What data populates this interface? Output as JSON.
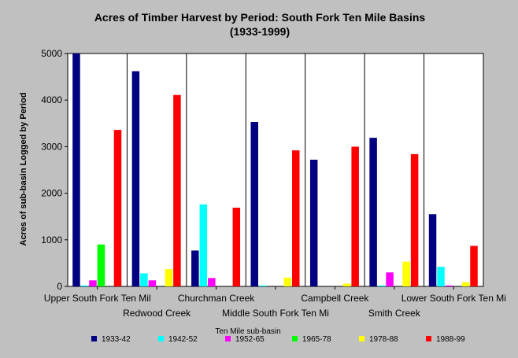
{
  "chart_data": {
    "type": "bar",
    "title": "Acres of Timber Harvest by Period: South Fork Ten Mile Basins",
    "subtitle": "(1933-1999)",
    "xlabel": "Ten Mile sub-basin",
    "ylabel": "Acres of sub-basin Logged by Period",
    "ylim": [
      0,
      5000
    ],
    "yticks": [
      0,
      1000,
      2000,
      3000,
      4000,
      5000
    ],
    "grid": false,
    "legend_position": "bottom",
    "categories": [
      "Upper South Fork Ten Mil",
      "Redwood Creek",
      "Churchman Creek",
      "Middle South Fork Ten Mi",
      "Campbell Creek",
      "Smith Creek",
      "Lower South Fork Ten Mi"
    ],
    "series": [
      {
        "name": "1933-42",
        "color": "#000080",
        "values": [
          5000,
          4620,
          770,
          3530,
          2720,
          3190,
          1550
        ]
      },
      {
        "name": "1942-52",
        "color": "#00ffff",
        "values": [
          20,
          280,
          1760,
          20,
          0,
          20,
          420
        ]
      },
      {
        "name": "1952-65",
        "color": "#ff00ff",
        "values": [
          130,
          130,
          180,
          0,
          0,
          300,
          20
        ]
      },
      {
        "name": "1965-78",
        "color": "#00ff00",
        "values": [
          900,
          0,
          0,
          0,
          0,
          0,
          0
        ]
      },
      {
        "name": "1978-88",
        "color": "#ffff00",
        "values": [
          0,
          370,
          0,
          190,
          60,
          530,
          90
        ]
      },
      {
        "name": "1988-99",
        "color": "#ff0000",
        "values": [
          3360,
          4110,
          1690,
          2920,
          3000,
          2840,
          870
        ]
      }
    ]
  }
}
